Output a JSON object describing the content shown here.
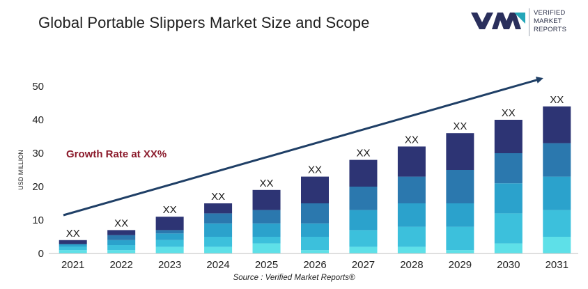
{
  "header": {
    "title": "Global Portable Slippers Market Size and Scope"
  },
  "logo": {
    "line1": "VERIFIED",
    "line2": "MARKET",
    "line3": "REPORTS",
    "icon": "vmr-logo-icon",
    "colors": {
      "dark": "#2a2f5c",
      "accent": "#23a6b8"
    }
  },
  "footer": {
    "source": "Source :  Verified Market Reports®"
  },
  "chart_data": {
    "type": "bar",
    "stacked": true,
    "categories": [
      "2021",
      "2022",
      "2023",
      "2024",
      "2025",
      "2026",
      "2027",
      "2028",
      "2029",
      "2030",
      "2031"
    ],
    "totals": [
      4,
      7,
      11,
      15,
      19,
      23,
      28,
      32,
      36,
      40,
      44
    ],
    "segments": [
      [
        1,
        1,
        0.8,
        1.2
      ],
      [
        1,
        1.5,
        1.5,
        1.5,
        1.5
      ],
      [
        2,
        2,
        2,
        1,
        4
      ],
      [
        2,
        3,
        4,
        3,
        3
      ],
      [
        3,
        2,
        4,
        4,
        6
      ],
      [
        1,
        4,
        4,
        6,
        8
      ],
      [
        2,
        5,
        6,
        7,
        8
      ],
      [
        2,
        6,
        7,
        8,
        9
      ],
      [
        1,
        7,
        7,
        10,
        11
      ],
      [
        3,
        9,
        9,
        9,
        10
      ],
      [
        5,
        8,
        10,
        10,
        11
      ]
    ],
    "data_labels": [
      "XX",
      "XX",
      "XX",
      "XX",
      "XX",
      "XX",
      "XX",
      "XX",
      "XX",
      "XX",
      "XX"
    ],
    "ylabel": "USD MILLION",
    "ylim": [
      0,
      50
    ],
    "yticks": [
      0,
      10,
      20,
      30,
      40,
      50
    ],
    "annotation": "Growth Rate at XX%",
    "grid": false,
    "colors": {
      "segments": [
        "#5ee0e8",
        "#3cc0dc",
        "#2ba2cc",
        "#2b78ae",
        "#2d3474"
      ],
      "arrow": "#1f3f66",
      "annotation": "#8b1a2b",
      "axis": "#222222"
    }
  }
}
